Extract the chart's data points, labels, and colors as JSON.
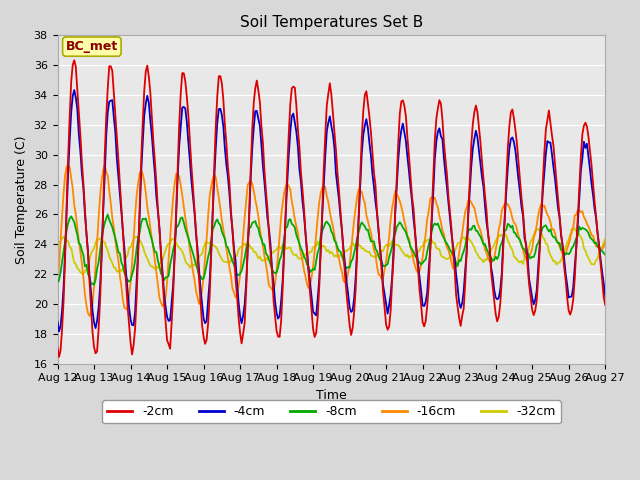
{
  "title": "Soil Temperatures Set B",
  "xlabel": "Time",
  "ylabel": "Soil Temperature (C)",
  "annotation": "BC_met",
  "ylim": [
    16,
    38
  ],
  "yticks": [
    16,
    18,
    20,
    22,
    24,
    26,
    28,
    30,
    32,
    34,
    36,
    38
  ],
  "xtick_labels": [
    "Aug 12",
    "Aug 13",
    "Aug 14",
    "Aug 15",
    "Aug 16",
    "Aug 17",
    "Aug 18",
    "Aug 19",
    "Aug 20",
    "Aug 21",
    "Aug 22",
    "Aug 23",
    "Aug 24",
    "Aug 25",
    "Aug 26",
    "Aug 27"
  ],
  "colors": {
    "-2cm": "#dd0000",
    "-4cm": "#0000cc",
    "-8cm": "#00aa00",
    "-16cm": "#ff8800",
    "-32cm": "#cccc00"
  },
  "fig_bg": "#d8d8d8",
  "ax_bg": "#e8e8e8",
  "grid_color": "#ffffff",
  "annotation_fg": "#880000",
  "annotation_bg": "#ffffaa",
  "annotation_edge": "#aaaa00"
}
